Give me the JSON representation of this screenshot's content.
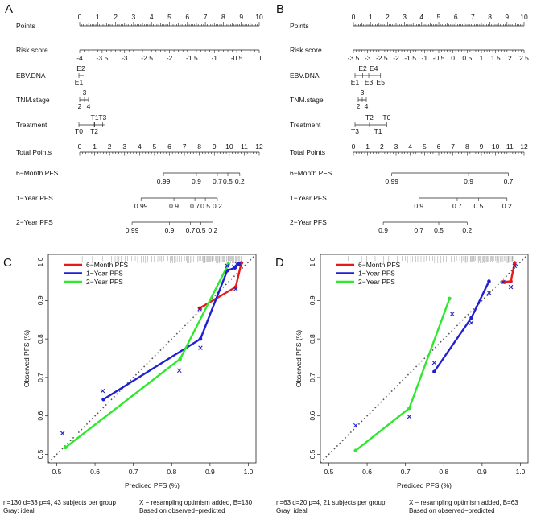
{
  "nomograms": [
    {
      "panel": "A",
      "row_labels": [
        "Points",
        "Risk.score",
        "EBV.DNA",
        "TNM.stage",
        "Treatment",
        "Total Points",
        "6−Month PFS",
        "1−Year PFS",
        "2−Year PFS"
      ],
      "points": {
        "min": 0,
        "max": 10,
        "ticks": [
          "0",
          "1",
          "2",
          "3",
          "4",
          "5",
          "6",
          "7",
          "8",
          "9",
          "10"
        ]
      },
      "risk_score": {
        "ticks": [
          "-4",
          "-3.5",
          "-3",
          "-2.5",
          "-2",
          "-1.5",
          "-1",
          "-0.5",
          "0"
        ],
        "points_per_tick": [
          0,
          1.25,
          2.5,
          3.75,
          5,
          6.25,
          7.5,
          8.75,
          10
        ]
      },
      "ebv_dna": {
        "top": [
          "E2"
        ],
        "bottom": [
          "E1"
        ]
      },
      "tnm_stage": {
        "top": [
          "3"
        ],
        "bottom": [
          "2",
          "4"
        ]
      },
      "treatment": {
        "top": [
          "T1",
          "T3"
        ],
        "bottom": [
          "T0",
          "T2"
        ]
      },
      "total_points": {
        "min": 0,
        "max": 12,
        "ticks": [
          "0",
          "1",
          "2",
          "3",
          "4",
          "5",
          "6",
          "7",
          "8",
          "9",
          "10",
          "11",
          "12"
        ]
      },
      "surv": [
        {
          "label": "6−Month PFS",
          "ticks": [
            "0.99",
            "0.9",
            "0.7",
            "0.5",
            "0.2"
          ],
          "at_total": [
            5.6,
            7.8,
            9.2,
            9.9,
            10.7
          ]
        },
        {
          "label": "1−Year PFS",
          "ticks": [
            "0.99",
            "0.9",
            "0.7",
            "0.5",
            "0.2"
          ],
          "at_total": [
            4.1,
            6.3,
            7.7,
            8.4,
            9.2
          ]
        },
        {
          "label": "2−Year PFS",
          "ticks": [
            "0.99",
            "0.9",
            "0.7",
            "0.5",
            "0.2"
          ],
          "at_total": [
            3.5,
            6.0,
            7.4,
            8.1,
            8.9
          ]
        }
      ]
    },
    {
      "panel": "B",
      "row_labels": [
        "Points",
        "Risk.score",
        "EBV.DNA",
        "TNM.stage",
        "Treatment",
        "Total Points",
        "6−Month PFS",
        "1−Year PFS",
        "2−Year PFS"
      ],
      "points": {
        "min": 0,
        "max": 10,
        "ticks": [
          "0",
          "1",
          "2",
          "3",
          "4",
          "5",
          "6",
          "7",
          "8",
          "9",
          "10"
        ]
      },
      "risk_score": {
        "ticks": [
          "-3.5",
          "-3",
          "-2.5",
          "-2",
          "-1.5",
          "-1",
          "-0.5",
          "0",
          "0.5",
          "1",
          "1.5",
          "2",
          "2.5"
        ],
        "points_per_tick": [
          0,
          0.833,
          1.667,
          2.5,
          3.333,
          4.167,
          5,
          5.833,
          6.667,
          7.5,
          8.333,
          9.167,
          10
        ]
      },
      "ebv_dna": {
        "top": [
          "E2",
          "E4"
        ],
        "bottom": [
          "E1",
          "E3",
          "E5"
        ]
      },
      "tnm_stage": {
        "top": [
          "3"
        ],
        "bottom": [
          "2",
          "4"
        ]
      },
      "treatment": {
        "top": [
          "T2",
          "T0"
        ],
        "bottom": [
          "T3",
          "T1"
        ]
      },
      "total_points": {
        "min": 0,
        "max": 12,
        "ticks": [
          "0",
          "1",
          "2",
          "3",
          "4",
          "5",
          "6",
          "7",
          "8",
          "9",
          "10",
          "11",
          "12"
        ]
      },
      "surv": [
        {
          "label": "6−Month PFS",
          "ticks": [
            "0.99",
            "0.9",
            "0.7"
          ],
          "at_total": [
            2.7,
            8.1,
            10.9
          ]
        },
        {
          "label": "1−Year PFS",
          "ticks": [
            "0.9",
            "0.7",
            "0.5",
            "0.2"
          ],
          "at_total": [
            4.6,
            7.3,
            8.8,
            10.8
          ]
        },
        {
          "label": "2−Year PFS",
          "ticks": [
            "0.9",
            "0.7",
            "0.5",
            "0.2"
          ],
          "at_total": [
            2.1,
            4.6,
            6.0,
            8.0
          ]
        }
      ]
    }
  ],
  "chart_data": [
    {
      "panel": "C",
      "type": "line",
      "title": "",
      "xlabel": "Prediced PFS (%)",
      "ylabel": "Observed PFS (%)",
      "xlim": [
        0.5,
        1.0
      ],
      "ylim": [
        0.5,
        1.0
      ],
      "xticks": [
        "0.5",
        "0.6",
        "0.7",
        "0.8",
        "0.9",
        "1.0"
      ],
      "yticks": [
        "0.5",
        "0.6",
        "0.7",
        "0.8",
        "0.9",
        "1.0"
      ],
      "ideal_line": "Gray: ideal",
      "legend": [
        "6−Month PFS",
        "1−Year PFS",
        "2−Year PFS"
      ],
      "series": [
        {
          "name": "6−Month PFS",
          "color": "#e41a1c",
          "x": [
            0.873,
            0.967,
            0.982
          ],
          "y": [
            0.88,
            0.935,
            0.998
          ],
          "x_corr": [
            0.873,
            0.967,
            0.975
          ],
          "y_corr": [
            0.878,
            0.93,
            0.995
          ]
        },
        {
          "name": "1−Year PFS",
          "color": "#1f1fd6",
          "x": [
            0.622,
            0.875,
            0.945,
            0.965,
            0.975
          ],
          "y": [
            0.643,
            0.8,
            0.978,
            0.985,
            0.995
          ],
          "x_corr": [
            0.62,
            0.875,
            0.945,
            0.963,
            0.97
          ],
          "y_corr": [
            0.665,
            0.777,
            0.978,
            0.988,
            0.995
          ]
        },
        {
          "name": "2−Year PFS",
          "color": "#2ee82e",
          "x": [
            0.523,
            0.822,
            0.948
          ],
          "y": [
            0.518,
            0.748,
            0.995
          ],
          "x_corr": [
            0.515,
            0.82,
            0.945
          ],
          "y_corr": [
            0.555,
            0.718,
            0.99
          ]
        }
      ],
      "footer": [
        "n=130 d=33 p=4, 43 subjects per group",
        "X − resampling optimism added, B=130",
        "Gray: ideal",
        "Based on observed−predicted"
      ]
    },
    {
      "panel": "D",
      "type": "line",
      "title": "",
      "xlabel": "Prediced PFS (%)",
      "ylabel": "Observed PFS (%)",
      "xlim": [
        0.5,
        1.0
      ],
      "ylim": [
        0.5,
        1.0
      ],
      "xticks": [
        "0.5",
        "0.6",
        "0.7",
        "0.8",
        "0.9",
        "1.0"
      ],
      "yticks": [
        "0.5",
        "0.6",
        "0.7",
        "0.8",
        "0.9",
        "1.0"
      ],
      "ideal_line": "Gray: ideal",
      "legend": [
        "6−Month PFS",
        "1−Year PFS",
        "2−Year PFS"
      ],
      "series": [
        {
          "name": "6−Month PFS",
          "color": "#e41a1c",
          "x": [
            0.955,
            0.975,
            0.985
          ],
          "y": [
            0.948,
            0.95,
            0.998
          ],
          "x_corr": [
            0.955,
            0.975,
            0.985
          ],
          "y_corr": [
            0.948,
            0.935,
            0.99
          ]
        },
        {
          "name": "1−Year PFS",
          "color": "#1f1fd6",
          "x": [
            0.775,
            0.872,
            0.918
          ],
          "y": [
            0.715,
            0.855,
            0.95
          ],
          "x_corr": [
            0.775,
            0.872,
            0.918
          ],
          "y_corr": [
            0.738,
            0.842,
            0.92
          ]
        },
        {
          "name": "2−Year PFS",
          "color": "#2ee82e",
          "x": [
            0.57,
            0.71,
            0.815
          ],
          "y": [
            0.51,
            0.62,
            0.905
          ],
          "x_corr": [
            0.57,
            0.71,
            0.822
          ],
          "y_corr": [
            0.575,
            0.598,
            0.865
          ]
        }
      ],
      "footer": [
        "n=63 d=20 p=4, 21 subjects per group",
        "X − resampling optimism added, B=63",
        "Gray: ideal",
        "Based on observed−predicted"
      ]
    }
  ]
}
